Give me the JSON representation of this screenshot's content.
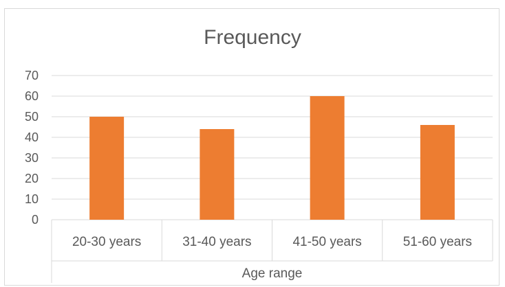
{
  "chart_data": {
    "type": "bar",
    "title": "Frequency",
    "xlabel": "Age range",
    "ylabel": "",
    "categories": [
      "20-30 years",
      "31-40 years",
      "41-50 years",
      "51-60 years"
    ],
    "values": [
      50,
      44,
      60,
      46
    ],
    "ylim": [
      0,
      70
    ],
    "yticks": [
      0,
      10,
      20,
      30,
      40,
      50,
      60,
      70
    ],
    "grid": true,
    "legend": "none",
    "bar_color": "#ED7D31",
    "grid_color": "#d9d9d9",
    "text_color": "#595959"
  }
}
